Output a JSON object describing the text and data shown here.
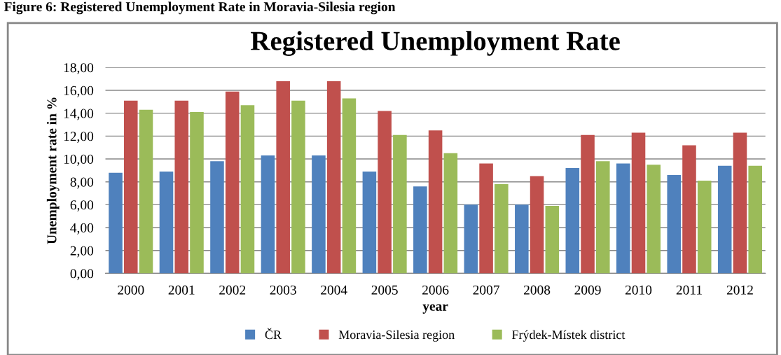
{
  "chart_data": {
    "type": "bar",
    "title": "Registered Unemployment Rate",
    "xlabel": "year",
    "ylabel": "Unemployment rate in %",
    "annotations": [
      "Figure 6: Registered Unemployment Rate in Moravia-Silesia region"
    ],
    "categories": [
      "2000",
      "2001",
      "2002",
      "2003",
      "2004",
      "2005",
      "2006",
      "2007",
      "2008",
      "2009",
      "2010",
      "2011",
      "2012"
    ],
    "series": [
      {
        "name": "ČR",
        "color": "#4f81bd",
        "values": [
          8.8,
          8.9,
          9.8,
          10.3,
          10.3,
          8.9,
          7.6,
          6.0,
          6.0,
          9.2,
          9.6,
          8.6,
          9.4
        ]
      },
      {
        "name": "Moravia-Silesia region",
        "color": "#c0504d",
        "values": [
          15.1,
          15.1,
          15.9,
          16.8,
          16.8,
          14.2,
          12.5,
          9.6,
          8.5,
          12.1,
          12.3,
          11.2,
          12.3
        ]
      },
      {
        "name": "Frýdek-Místek district",
        "color": "#9bbb59",
        "values": [
          14.3,
          14.1,
          14.7,
          15.1,
          15.3,
          12.1,
          10.5,
          7.8,
          5.9,
          9.8,
          9.5,
          8.1,
          9.4
        ]
      }
    ],
    "ylim": [
      0,
      18
    ],
    "yticks": [
      {
        "value": 0,
        "label": "0,00"
      },
      {
        "value": 2,
        "label": "2,00"
      },
      {
        "value": 4,
        "label": "4,00"
      },
      {
        "value": 6,
        "label": "6,00"
      },
      {
        "value": 8,
        "label": "8,00"
      },
      {
        "value": 10,
        "label": "10,00"
      },
      {
        "value": 12,
        "label": "12,00"
      },
      {
        "value": 14,
        "label": "14,00"
      },
      {
        "value": 16,
        "label": "16,00"
      },
      {
        "value": 18,
        "label": "18,00"
      }
    ],
    "grid": "y",
    "legend": "bottom"
  }
}
